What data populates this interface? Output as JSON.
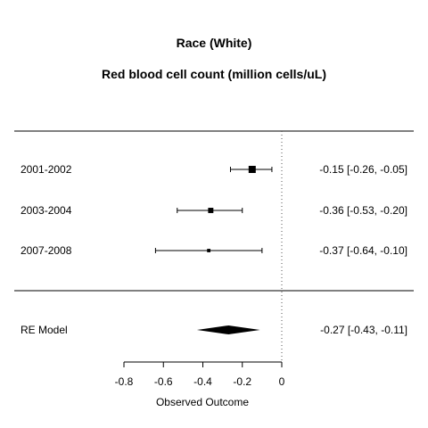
{
  "chart_data": {
    "type": "forest",
    "title": "Race (White)",
    "subtitle": "Red blood cell count (million cells/uL)",
    "xlabel": "Observed Outcome",
    "xlim": [
      -0.8,
      0
    ],
    "xticks": [
      -0.8,
      -0.6,
      -0.4,
      -0.2,
      0
    ],
    "xtick_labels": [
      "-0.8",
      "-0.6",
      "-0.4",
      "-0.2",
      "0"
    ],
    "reference_line": 0,
    "studies": [
      {
        "label": "2001-2002",
        "estimate": -0.15,
        "ci": [
          -0.26,
          -0.05
        ],
        "weight": 1.0,
        "text": "-0.15 [-0.26, -0.05]"
      },
      {
        "label": "2003-2004",
        "estimate": -0.36,
        "ci": [
          -0.53,
          -0.2
        ],
        "weight": 0.65,
        "text": "-0.36 [-0.53, -0.20]"
      },
      {
        "label": "2007-2008",
        "estimate": -0.37,
        "ci": [
          -0.64,
          -0.1
        ],
        "weight": 0.3,
        "text": "-0.37 [-0.64, -0.10]"
      }
    ],
    "summary": {
      "label": "RE Model",
      "estimate": -0.27,
      "ci": [
        -0.43,
        -0.11
      ],
      "text": "-0.27 [-0.43, -0.11]"
    }
  }
}
